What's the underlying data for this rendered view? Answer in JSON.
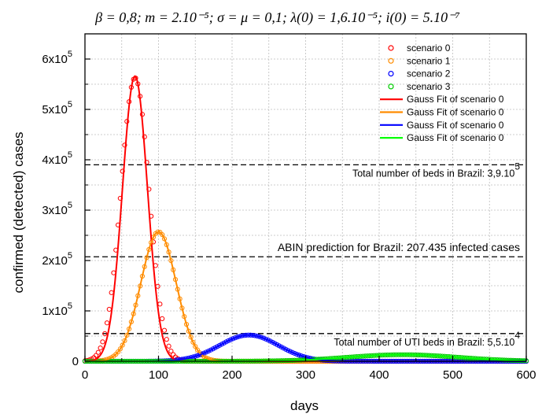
{
  "chart_data": {
    "type": "scatter",
    "title": "β = 0,8; m = 2.10⁻⁵; σ = μ = 0,1; λ(0) = 1,6.10⁻⁵; i(0) = 5.10⁻⁷",
    "xlabel": "days",
    "ylabel": "confirmed (detected) cases",
    "xlim": [
      0,
      600
    ],
    "ylim": [
      0,
      650000
    ],
    "x_ticks": [
      {
        "value": 0,
        "label": "0"
      },
      {
        "value": 100,
        "label": "100"
      },
      {
        "value": 200,
        "label": "200"
      },
      {
        "value": 300,
        "label": "300"
      },
      {
        "value": 400,
        "label": "400"
      },
      {
        "value": 500,
        "label": "500"
      },
      {
        "value": 600,
        "label": "600"
      }
    ],
    "y_ticks": [
      {
        "value": 0,
        "label": "0"
      },
      {
        "value": 100000,
        "base": "1x10",
        "exp": "5"
      },
      {
        "value": 200000,
        "base": "2x10",
        "exp": "5"
      },
      {
        "value": 300000,
        "base": "3x10",
        "exp": "5"
      },
      {
        "value": 400000,
        "base": "4x10",
        "exp": "5"
      },
      {
        "value": 500000,
        "base": "5x10",
        "exp": "5"
      },
      {
        "value": 600000,
        "base": "6x10",
        "exp": "5"
      }
    ],
    "grid": true,
    "legend_position": "top-right",
    "series": [
      {
        "name": "scenario 0",
        "kind": "markers",
        "color": "#ff0000",
        "peak_day": 68,
        "peak_cases": 563000,
        "width_days": 19
      },
      {
        "name": "scenario 1",
        "kind": "markers",
        "color": "#ff8c00",
        "peak_day": 100,
        "peak_cases": 257000,
        "width_days": 24
      },
      {
        "name": "scenario 2",
        "kind": "markers",
        "color": "#0000ff",
        "peak_day": 223,
        "peak_cases": 52000,
        "width_days": 40
      },
      {
        "name": "scenario 3",
        "kind": "markers",
        "color": "#00cc00",
        "peak_day": 432,
        "peak_cases": 13000,
        "width_days": 75
      },
      {
        "name": "Gauss Fit of scenario 0",
        "kind": "line",
        "color": "#ff0000",
        "peak_day": 68,
        "peak_cases": 566000,
        "width_days": 17
      },
      {
        "name": "Gauss Fit of scenario 0",
        "kind": "line",
        "color": "#ff8c00",
        "peak_day": 100,
        "peak_cases": 257000,
        "width_days": 24
      },
      {
        "name": "Gauss Fit of scenario 0",
        "kind": "line",
        "color": "#0000ff",
        "peak_day": 223,
        "peak_cases": 52000,
        "width_days": 40
      },
      {
        "name": "Gauss Fit of scenario 0",
        "kind": "line",
        "color": "#00ff00",
        "peak_day": 432,
        "peak_cases": 13000,
        "width_days": 75
      }
    ],
    "reference_lines": [
      {
        "value": 390000,
        "label": "Total number of beds in Brazil: 3,9.10",
        "exp": "5"
      },
      {
        "value": 207435,
        "label": "ABIN prediction for Brazil: 207.435 infected cases",
        "exp": ""
      },
      {
        "value": 55000,
        "label": "Total number of UTI beds in Brazil: 5,5.10",
        "exp": "4"
      }
    ]
  }
}
